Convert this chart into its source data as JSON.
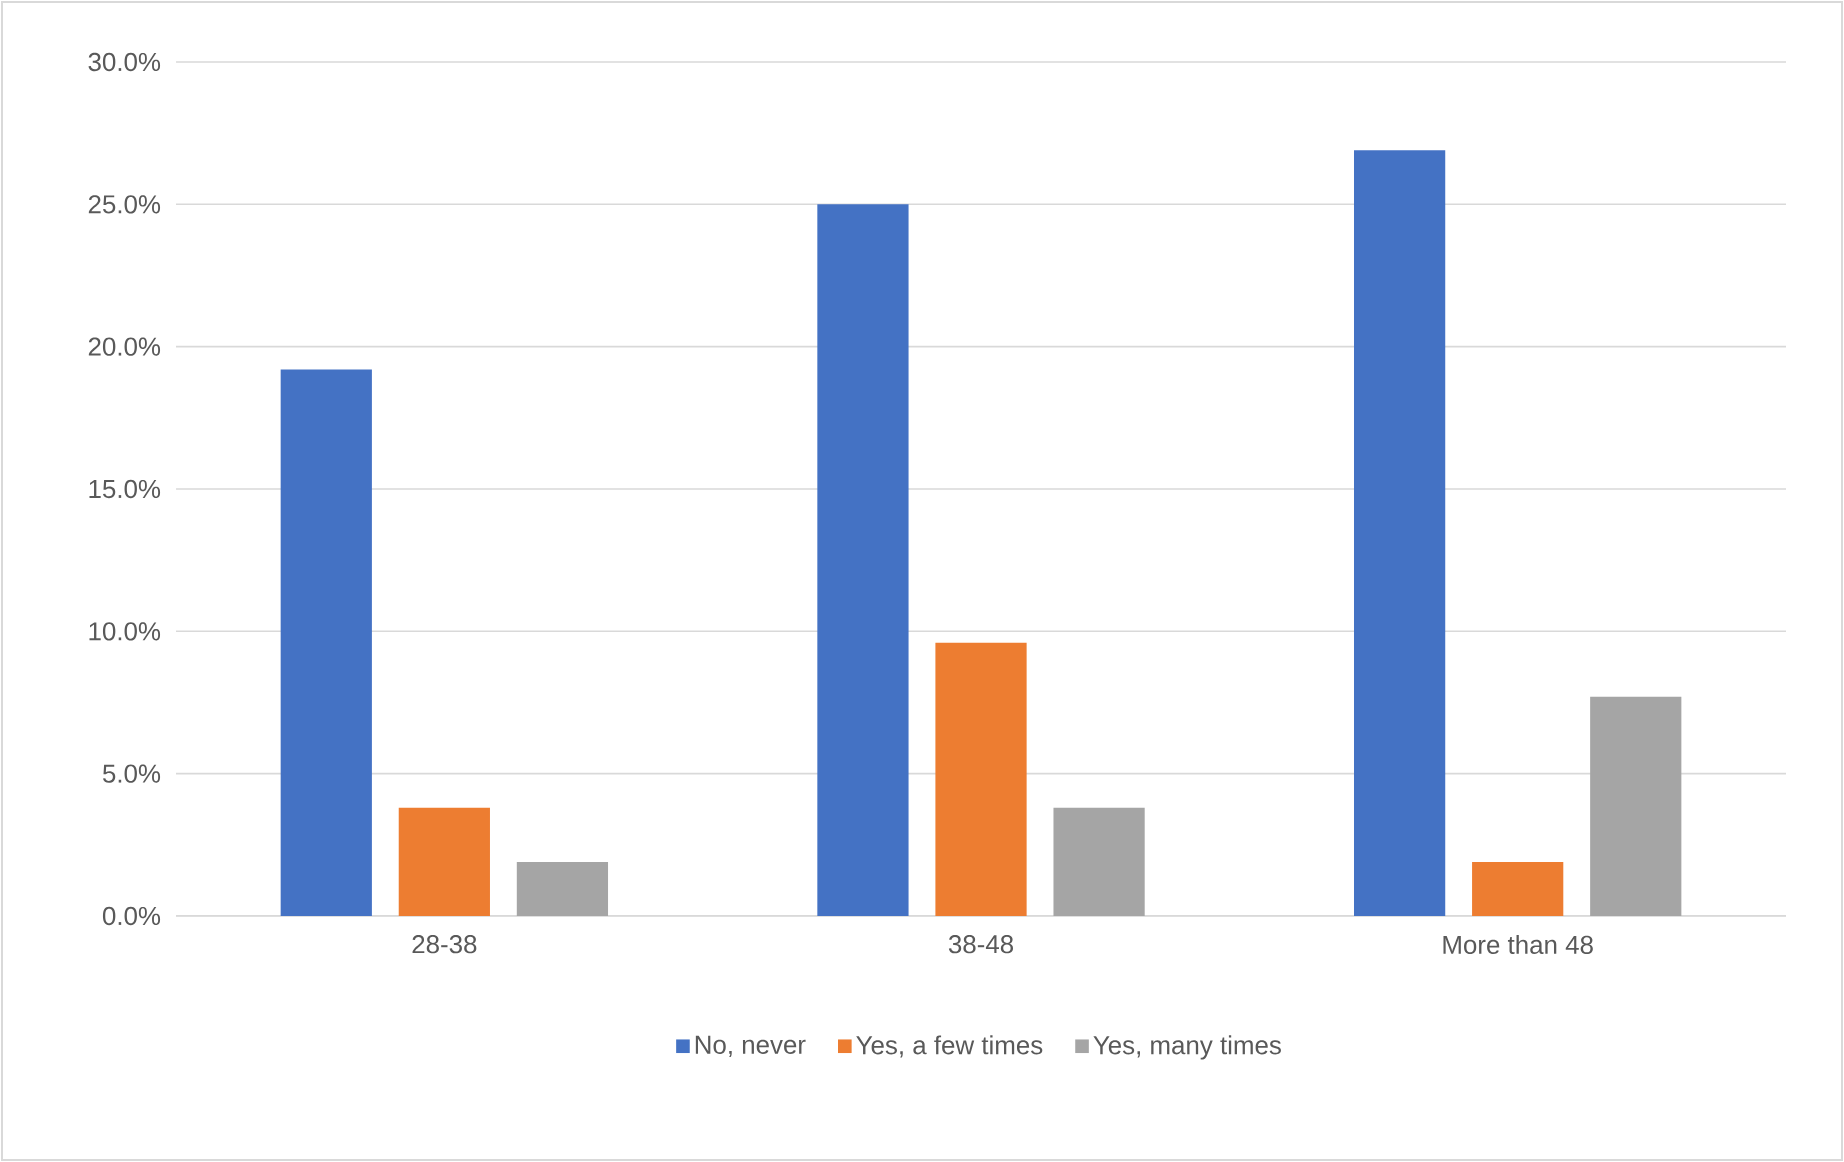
{
  "chart_data": {
    "type": "bar",
    "categories": [
      "28-38",
      "38-48",
      "More than 48"
    ],
    "series": [
      {
        "name": "No, never",
        "color": "#4472c4",
        "values": [
          19.2,
          25.0,
          26.9
        ]
      },
      {
        "name": "Yes, a few times",
        "color": "#ed7d31",
        "values": [
          3.8,
          9.6,
          1.9
        ]
      },
      {
        "name": "Yes, many times",
        "color": "#a5a5a5",
        "values": [
          1.9,
          3.8,
          7.7
        ]
      }
    ],
    "ylim": [
      0,
      30
    ],
    "yticks": [
      {
        "value": 0,
        "label": "0.0%"
      },
      {
        "value": 5,
        "label": "5.0%"
      },
      {
        "value": 10,
        "label": "10.0%"
      },
      {
        "value": 15,
        "label": "15.0%"
      },
      {
        "value": 20,
        "label": "20.0%"
      },
      {
        "value": 25,
        "label": "25.0%"
      },
      {
        "value": 30,
        "label": "30.0%"
      }
    ],
    "grid": "y",
    "legend": "bottom"
  }
}
